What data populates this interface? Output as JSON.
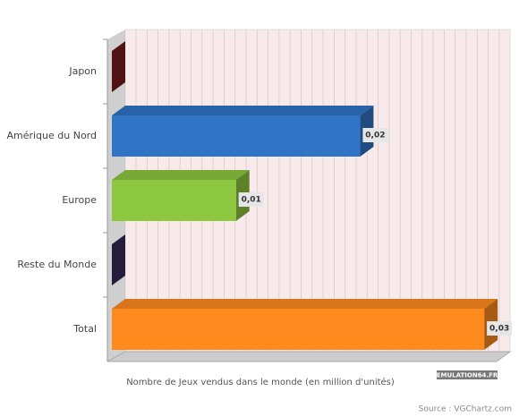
{
  "chart_data": {
    "type": "bar3d",
    "orientation": "horizontal",
    "categories": [
      "Japon",
      "Amérique du Nord",
      "Europe",
      "Reste du Monde",
      "Total"
    ],
    "values": [
      0,
      0.02,
      0.01,
      0,
      0.03
    ],
    "value_labels": [
      null,
      "0,02",
      "0,01",
      null,
      "0,03"
    ],
    "colors": [
      "#7b1c1c",
      "#2f74c6",
      "#8dc63f",
      "#3b2b5c",
      "#ff8a1e"
    ],
    "xlim": [
      0,
      0.031
    ],
    "x_label": "Nombre de Jeux vendus dans le monde (en million d'unités)",
    "watermark": "EMULATION64.FR",
    "source": "Source : VGChartz.com"
  }
}
